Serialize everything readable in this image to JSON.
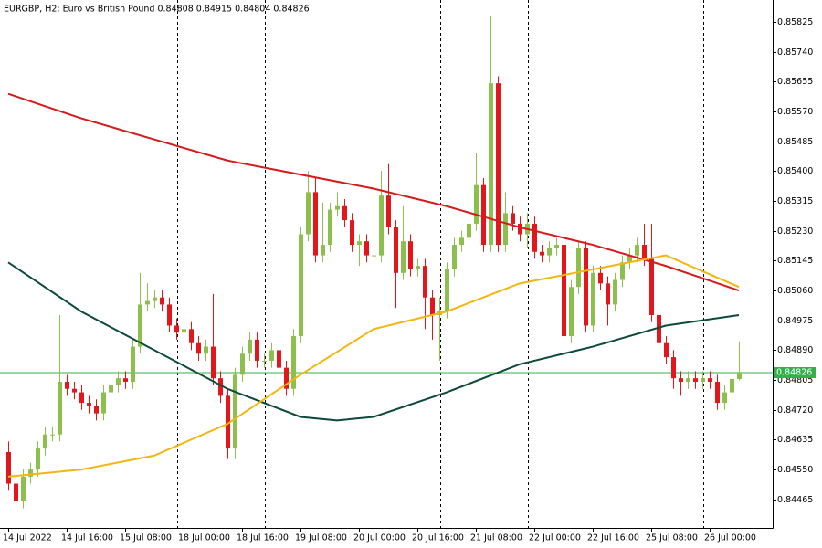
{
  "chart_data": {
    "type": "candlestick",
    "title": "EURGBP, H2:  Euro vs British Pound  0.84808 0.84915 0.84804 0.84826",
    "categories": [
      "14 Jul 2022",
      null,
      null,
      null,
      null,
      null,
      null,
      null,
      "14 Jul 16:00",
      null,
      null,
      null,
      null,
      null,
      null,
      null,
      "15 Jul 08:00",
      null,
      null,
      null,
      null,
      null,
      null,
      null,
      "18 Jul 00:00",
      null,
      null,
      null,
      null,
      null,
      null,
      null,
      "18 Jul 16:00",
      null,
      null,
      null,
      null,
      null,
      null,
      null,
      "19 Jul 08:00",
      null,
      null,
      null,
      null,
      null,
      null,
      null,
      "20 Jul 00:00",
      null,
      null,
      null,
      null,
      null,
      null,
      null,
      "20 Jul 16:00",
      null,
      null,
      null,
      null,
      null,
      null,
      null,
      "21 Jul 08:00",
      null,
      null,
      null,
      null,
      null,
      null,
      null,
      "22 Jul 00:00",
      null,
      null,
      null,
      null,
      null,
      null,
      null,
      "22 Jul 16:00",
      null,
      null,
      null,
      null,
      null,
      null,
      null,
      "25 Jul 08:00",
      null,
      null,
      null,
      null,
      null,
      null,
      null,
      "26 Jul 00:00",
      null,
      null,
      null,
      null
    ],
    "open": [
      0.846,
      0.8451,
      0.8446,
      0.8453,
      0.8455,
      0.8461,
      0.8465,
      0.8465,
      0.848,
      0.8478,
      0.8477,
      0.8474,
      0.8473,
      0.8471,
      0.8477,
      0.8479,
      0.8481,
      0.848,
      0.849,
      0.8502,
      0.8503,
      0.8504,
      0.8502,
      0.8496,
      0.8494,
      0.8495,
      0.8491,
      0.8488,
      0.849,
      0.8481,
      0.8476,
      0.8461,
      0.8482,
      0.8488,
      0.8492,
      0.8486,
      0.8486,
      0.8489,
      0.8484,
      0.8478,
      0.8493,
      0.8522,
      0.8534,
      0.8516,
      0.8519,
      0.8529,
      0.853,
      0.8526,
      0.8519,
      0.852,
      0.8516,
      0.8516,
      0.8533,
      0.8524,
      0.8511,
      0.852,
      0.8512,
      0.8513,
      0.8504,
      0.8499,
      0.85,
      0.8512,
      0.8519,
      0.8521,
      0.8525,
      0.8536,
      0.8519,
      0.8565,
      0.8519,
      0.8528,
      0.8525,
      0.8522,
      0.8525,
      0.8517,
      0.8516,
      0.8518,
      0.8519,
      0.8493,
      0.8507,
      0.8518,
      0.8496,
      0.8511,
      0.8508,
      0.8502,
      0.8509,
      0.8514,
      0.8516,
      0.8519,
      0.8515,
      0.8499,
      0.8491,
      0.8487,
      0.8481,
      0.848,
      0.8481,
      0.848,
      0.8481,
      0.848,
      0.8474,
      0.8477,
      0.84808
    ],
    "high": [
      0.8463,
      0.8453,
      0.8455,
      0.8457,
      0.8463,
      0.8467,
      0.8467,
      0.8499,
      0.8482,
      0.848,
      0.8479,
      0.8476,
      0.8475,
      0.8479,
      0.8481,
      0.8483,
      0.8483,
      0.8492,
      0.8511,
      0.8508,
      0.8506,
      0.8506,
      0.8504,
      0.8498,
      0.8497,
      0.8497,
      0.8493,
      0.8492,
      0.8505,
      0.8483,
      0.8478,
      0.8484,
      0.849,
      0.8494,
      0.8494,
      0.8488,
      0.8491,
      0.8491,
      0.8486,
      0.8495,
      0.8524,
      0.854,
      0.8538,
      0.8531,
      0.8531,
      0.8534,
      0.8532,
      0.8528,
      0.8522,
      0.8522,
      0.8518,
      0.854,
      0.8542,
      0.8526,
      0.853,
      0.8522,
      0.8515,
      0.8515,
      0.8506,
      0.8504,
      0.8514,
      0.8521,
      0.8523,
      0.8527,
      0.8545,
      0.8538,
      0.8584,
      0.8567,
      0.8534,
      0.853,
      0.8527,
      0.8528,
      0.8527,
      0.8519,
      0.852,
      0.8521,
      0.8521,
      0.8509,
      0.852,
      0.852,
      0.8513,
      0.8513,
      0.851,
      0.8511,
      0.8516,
      0.8518,
      0.8521,
      0.8525,
      0.8525,
      0.8501,
      0.8493,
      0.8489,
      0.8483,
      0.8483,
      0.8483,
      0.8483,
      0.8483,
      0.8482,
      0.8479,
      0.8483,
      0.84915
    ],
    "low": [
      0.8449,
      0.8443,
      0.8444,
      0.8451,
      0.8453,
      0.8459,
      0.8463,
      0.8463,
      0.8476,
      0.8475,
      0.8472,
      0.8471,
      0.8469,
      0.8469,
      0.8475,
      0.8477,
      0.8478,
      0.8478,
      0.8488,
      0.85,
      0.8501,
      0.85,
      0.8494,
      0.8492,
      0.8492,
      0.8489,
      0.8486,
      0.8486,
      0.8479,
      0.8474,
      0.8458,
      0.8458,
      0.848,
      0.8486,
      0.8484,
      0.8484,
      0.8484,
      0.8482,
      0.8476,
      0.8476,
      0.8491,
      0.852,
      0.8514,
      0.8514,
      0.8517,
      0.8527,
      0.8524,
      0.8517,
      0.8513,
      0.8514,
      0.8514,
      0.8514,
      0.8522,
      0.8501,
      0.8509,
      0.851,
      0.851,
      0.8495,
      0.8492,
      0.8486,
      0.8498,
      0.851,
      0.8517,
      0.8515,
      0.8523,
      0.8517,
      0.8517,
      0.8517,
      0.8517,
      0.8523,
      0.852,
      0.8518,
      0.8515,
      0.8514,
      0.8514,
      0.8516,
      0.849,
      0.8491,
      0.8505,
      0.8494,
      0.8494,
      0.8506,
      0.8496,
      0.85,
      0.8507,
      0.8512,
      0.8514,
      0.8513,
      0.8497,
      0.8489,
      0.8485,
      0.8478,
      0.8476,
      0.8478,
      0.8478,
      0.8478,
      0.8478,
      0.8472,
      0.8472,
      0.8475,
      0.84804
    ],
    "close": [
      0.8451,
      0.8446,
      0.8453,
      0.8455,
      0.8461,
      0.8465,
      0.8465,
      0.848,
      0.8478,
      0.8477,
      0.8474,
      0.8473,
      0.8471,
      0.8477,
      0.8479,
      0.8481,
      0.848,
      0.849,
      0.8502,
      0.8503,
      0.8504,
      0.8502,
      0.8496,
      0.8494,
      0.8495,
      0.8491,
      0.8488,
      0.849,
      0.8481,
      0.8476,
      0.8461,
      0.8482,
      0.8488,
      0.8492,
      0.8486,
      0.8486,
      0.8489,
      0.8484,
      0.8478,
      0.8493,
      0.8522,
      0.8534,
      0.8516,
      0.8519,
      0.8529,
      0.853,
      0.8526,
      0.8519,
      0.852,
      0.8516,
      0.8516,
      0.8533,
      0.8524,
      0.8511,
      0.852,
      0.8512,
      0.8513,
      0.8504,
      0.8499,
      0.85,
      0.8512,
      0.8519,
      0.8521,
      0.8525,
      0.8536,
      0.8519,
      0.8565,
      0.8519,
      0.8528,
      0.8525,
      0.8522,
      0.8525,
      0.8517,
      0.8516,
      0.8518,
      0.8519,
      0.8493,
      0.8507,
      0.8518,
      0.8496,
      0.8511,
      0.8508,
      0.8502,
      0.8509,
      0.8514,
      0.8516,
      0.8519,
      0.8515,
      0.8499,
      0.8491,
      0.8487,
      0.8481,
      0.848,
      0.8481,
      0.848,
      0.8481,
      0.848,
      0.8474,
      0.8477,
      0.84808,
      0.84826
    ],
    "bull_color": "#8cbf4e",
    "bear_color": "#e3161c",
    "moving_averages": [
      {
        "color": "#d7191c",
        "x": [
          0,
          10,
          20,
          30,
          40,
          50,
          60,
          70,
          80,
          90,
          100
        ],
        "values": [
          0.8562,
          0.8555,
          0.8549,
          0.8543,
          0.8539,
          0.8535,
          0.853,
          0.8524,
          0.8519,
          0.8513,
          0.8506
        ]
      },
      {
        "color": "#0d4a3a",
        "x": [
          0,
          10,
          20,
          30,
          40,
          45,
          50,
          60,
          70,
          80,
          90,
          100
        ],
        "values": [
          0.8514,
          0.85,
          0.8489,
          0.8478,
          0.847,
          0.8469,
          0.847,
          0.8477,
          0.8485,
          0.849,
          0.8496,
          0.8499
        ]
      },
      {
        "color": "#f2b70f",
        "x": [
          0,
          10,
          20,
          30,
          40,
          50,
          60,
          70,
          80,
          85,
          90,
          100
        ],
        "values": [
          0.8453,
          0.8455,
          0.8459,
          0.8468,
          0.8482,
          0.8495,
          0.85,
          0.8508,
          0.8512,
          0.8514,
          0.8516,
          0.8507
        ]
      }
    ],
    "current_price": 0.84826,
    "current_price_color": "#33b04a",
    "ylim": [
      0.84384,
      0.85887
    ],
    "yticks": [
      0.85825,
      {
        "value": 0.8574,
        "label": "0.85740"
      },
      0.85655,
      {
        "value": 0.8557,
        "label": "0.85570"
      },
      0.85485,
      {
        "value": 0.854,
        "label": "0.85400"
      },
      0.85315,
      {
        "value": 0.8523,
        "label": "0.85230"
      },
      0.85145,
      {
        "value": 0.8506,
        "label": "0.85060"
      },
      0.84975,
      {
        "value": 0.8489,
        "label": "0.84890"
      },
      0.84805,
      {
        "value": 0.8472,
        "label": "0.84720"
      },
      0.84635,
      {
        "value": 0.8455,
        "label": "0.84550"
      },
      0.84465
    ]
  }
}
